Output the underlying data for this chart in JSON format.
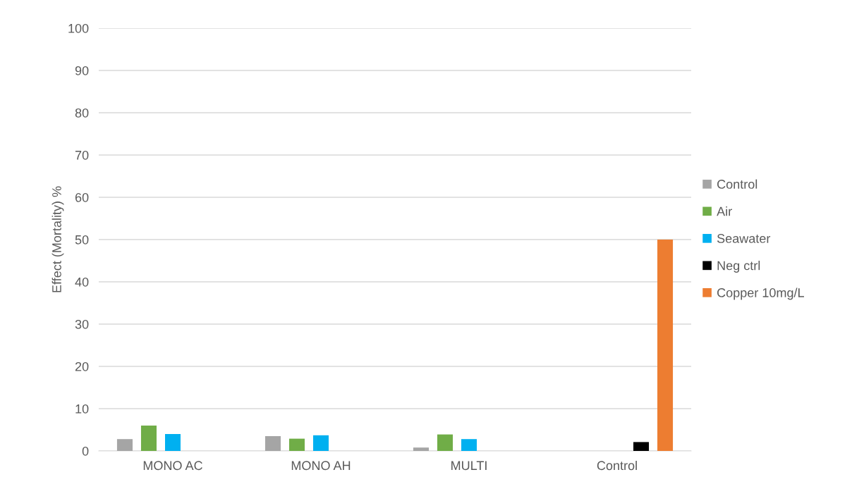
{
  "chart_data": {
    "type": "bar",
    "ylabel": "Effect (Mortality) %",
    "categories": [
      "MONO AC",
      "MONO AH",
      "MULTI",
      "Control"
    ],
    "series": [
      {
        "name": "Control",
        "color": "#a5a5a5",
        "values": [
          2.8,
          3.5,
          0.8,
          null
        ]
      },
      {
        "name": "Air",
        "color": "#70ad47",
        "values": [
          6.0,
          2.9,
          3.9,
          null
        ]
      },
      {
        "name": "Seawater",
        "color": "#00b0f0",
        "values": [
          4.0,
          3.7,
          2.8,
          null
        ]
      },
      {
        "name": "Neg ctrl",
        "color": "#000000",
        "values": [
          null,
          null,
          null,
          2.1
        ]
      },
      {
        "name": "Copper 10mg/L",
        "color": "#ed7d31",
        "values": [
          null,
          null,
          null,
          50
        ]
      }
    ],
    "ylim": [
      0,
      100
    ],
    "yticks": [
      0,
      10,
      20,
      30,
      40,
      50,
      60,
      70,
      80,
      90,
      100
    ],
    "grid": "y",
    "legend": "right"
  }
}
